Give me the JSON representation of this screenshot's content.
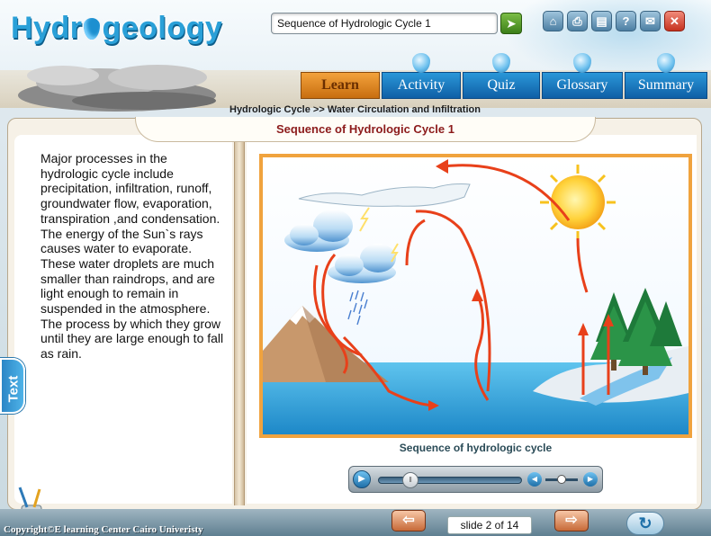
{
  "header": {
    "logo_text_before": "Hydr",
    "logo_text_after": "geology",
    "search_value": "Sequence of Hydrologic Cycle 1",
    "go_icon": "arrow-right-icon",
    "tool_icons": [
      "home-icon",
      "print-icon",
      "notes-icon",
      "help-icon",
      "mail-icon",
      "close-icon"
    ]
  },
  "nav": {
    "tabs": [
      {
        "label": "Learn",
        "active": true
      },
      {
        "label": "Activity",
        "active": false
      },
      {
        "label": "Quiz",
        "active": false
      },
      {
        "label": "Glossary",
        "active": false
      },
      {
        "label": "Summary",
        "active": false
      }
    ]
  },
  "breadcrumb": {
    "section": "Hydrologic Cycle",
    "separator": ">>",
    "page": "Water Circulation and Infiltration"
  },
  "content": {
    "title": "Sequence of Hydrologic Cycle 1",
    "body": "Major processes in the hydrologic cycle include precipitation, infiltration, runoff, groundwater flow, evaporation, transpiration ,and condensation. The energy of the Sun`s rays causes water to evaporate. These water droplets are much smaller than raindrops, and are light enough to remain in suspended in the atmosphere. The process by which they grow until they are large enough to fall as rain.",
    "side_tab_label": "Text",
    "diagram_caption": "Sequence of hydrologic cycle"
  },
  "media": {
    "seek_progress": 0.22,
    "volume_level": 0.5
  },
  "footer": {
    "copyright": "Copyright©E  learning Center Cairo Univeristy",
    "slide_counter": "slide 2 of 14"
  },
  "colors": {
    "nav_tab": "#1a7bc2",
    "nav_tab_active": "#e08a22",
    "title_text": "#8c1b1b",
    "diagram_border": "#f0a33e",
    "arrow_red": "#e8401a"
  }
}
